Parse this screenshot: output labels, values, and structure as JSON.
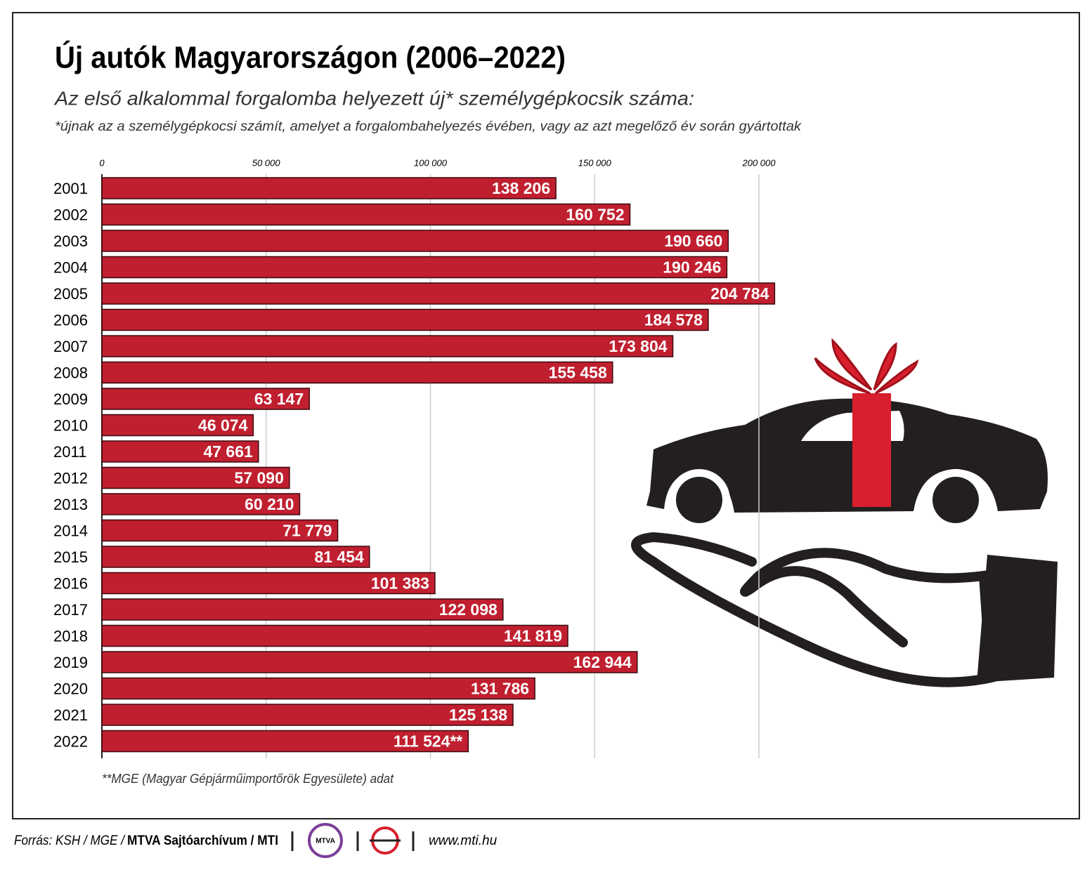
{
  "chart_data": {
    "type": "bar",
    "title": "Új autók Magyarországon (2006–2022)",
    "subtitle": "Az első alkalommal forgalomba helyezett új* személygépkocsik száma:",
    "footnote": "*újnak az a személygépkocsi számít, amelyet a forgalombahelyezés évében, vagy az azt megelőző év során gyártottak",
    "note": "**MGE (Magyar Gépjárműimportőrök Egyesülete) adat",
    "categories": [
      "2001",
      "2002",
      "2003",
      "2004",
      "2005",
      "2006",
      "2007",
      "2008",
      "2009",
      "2010",
      "2011",
      "2012",
      "2013",
      "2014",
      "2015",
      "2016",
      "2017",
      "2018",
      "2019",
      "2020",
      "2021",
      "2022"
    ],
    "values": [
      138206,
      160752,
      190660,
      190246,
      204784,
      184578,
      173804,
      155458,
      63147,
      46074,
      47661,
      57090,
      60210,
      71779,
      81454,
      101383,
      122098,
      141819,
      162944,
      131786,
      125138,
      111524
    ],
    "value_labels": [
      "138 206",
      "160 752",
      "190 660",
      "190 246",
      "204 784",
      "184 578",
      "173 804",
      "155 458",
      "63 147",
      "46 074",
      "47 661",
      "57 090",
      "60 210",
      "71 779",
      "81 454",
      "101 383",
      "122 098",
      "141 819",
      "162 944",
      "131 786",
      "125 138",
      "111 524**"
    ],
    "color": "#c01f2f",
    "xlim": [
      0,
      200000
    ],
    "xticks": [
      0,
      {
        "value": 50000,
        "label": "50 000"
      },
      {
        "value": 100000,
        "label": "100 000"
      },
      {
        "value": 150000,
        "label": "150 000"
      },
      {
        "value": 200000,
        "label": "200 000"
      }
    ],
    "grid": true
  },
  "footer": {
    "source": "Forrás: KSH / MGE /",
    "source_bold": "MTVA Sajtóarchívum / MTI",
    "logo_text": "MTVA",
    "website": "www.mti.hu"
  }
}
